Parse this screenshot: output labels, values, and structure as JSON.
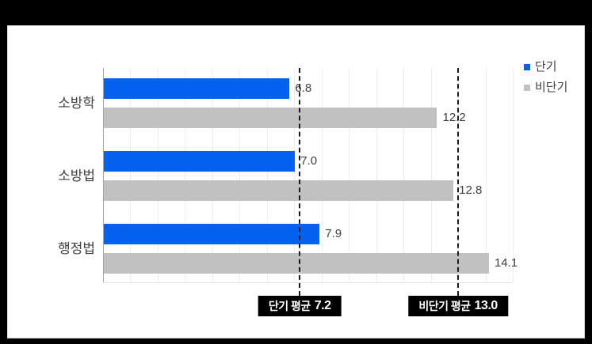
{
  "frame": {
    "background": "#000000"
  },
  "panel": {
    "background": "#ffffff",
    "border_color": "#d8d8d8"
  },
  "chart_data": {
    "type": "bar",
    "orientation": "horizontal",
    "categories": [
      "소방학",
      "소방법",
      "행정법"
    ],
    "series": [
      {
        "name": "단기",
        "color": "#0561f0",
        "values": [
          6.8,
          7.0,
          7.9
        ]
      },
      {
        "name": "비단기",
        "color": "#c1c1c1",
        "values": [
          12.2,
          12.8,
          14.1
        ]
      }
    ],
    "xlim": [
      0,
      15
    ],
    "grid_step": 1,
    "grid": true,
    "legend_position": "top-right",
    "value_label_decimals": 1,
    "annotations": [
      {
        "label": "단기 평균",
        "value_text": "7.2",
        "value": 7.2
      },
      {
        "label": "비단기 평균",
        "value_text": "13.0",
        "value": 13.0
      }
    ]
  },
  "styles": {
    "grid_color": "#ececec",
    "axis_color": "#a6a6a6",
    "value_text_color": "#404040",
    "category_text_color": "#3f3f3f",
    "mean_line_color": "#1a1a1a",
    "annotation_bg": "#000000",
    "annotation_text": "#ffffff"
  }
}
